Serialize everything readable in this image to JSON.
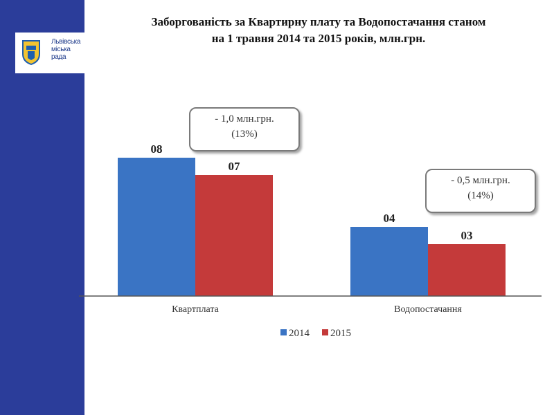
{
  "slide": {
    "title_line1": "Заборгованість за Квартирну плату та Водопостачання станом",
    "title_line2": "на 1 травня 2014 та 2015 років, млн.грн.",
    "logo": {
      "name": "lviv-city-council-logo",
      "text_line1": "Львівська",
      "text_line2": "міська",
      "text_line3": "рада"
    },
    "callouts": [
      {
        "line1": "- 1,0 млн.грн.",
        "line2": "(13%)"
      },
      {
        "line1": "- 0,5 млн.грн.",
        "line2": "(14%)"
      }
    ],
    "colors": {
      "sidebar": "#2b3d9a"
    }
  },
  "chart_data": {
    "type": "bar",
    "title": "",
    "categories": [
      "Квартплата",
      "Водопостачання"
    ],
    "series": [
      {
        "name": "2014",
        "values": [
          8,
          4
        ],
        "labels": [
          "08",
          "04"
        ],
        "color": "#3a74c4"
      },
      {
        "name": "2015",
        "values": [
          7,
          3
        ],
        "labels": [
          "07",
          "03"
        ],
        "color": "#c43a3a"
      }
    ],
    "ylim": [
      0,
      10
    ],
    "grid": false,
    "legend": "bottom"
  }
}
